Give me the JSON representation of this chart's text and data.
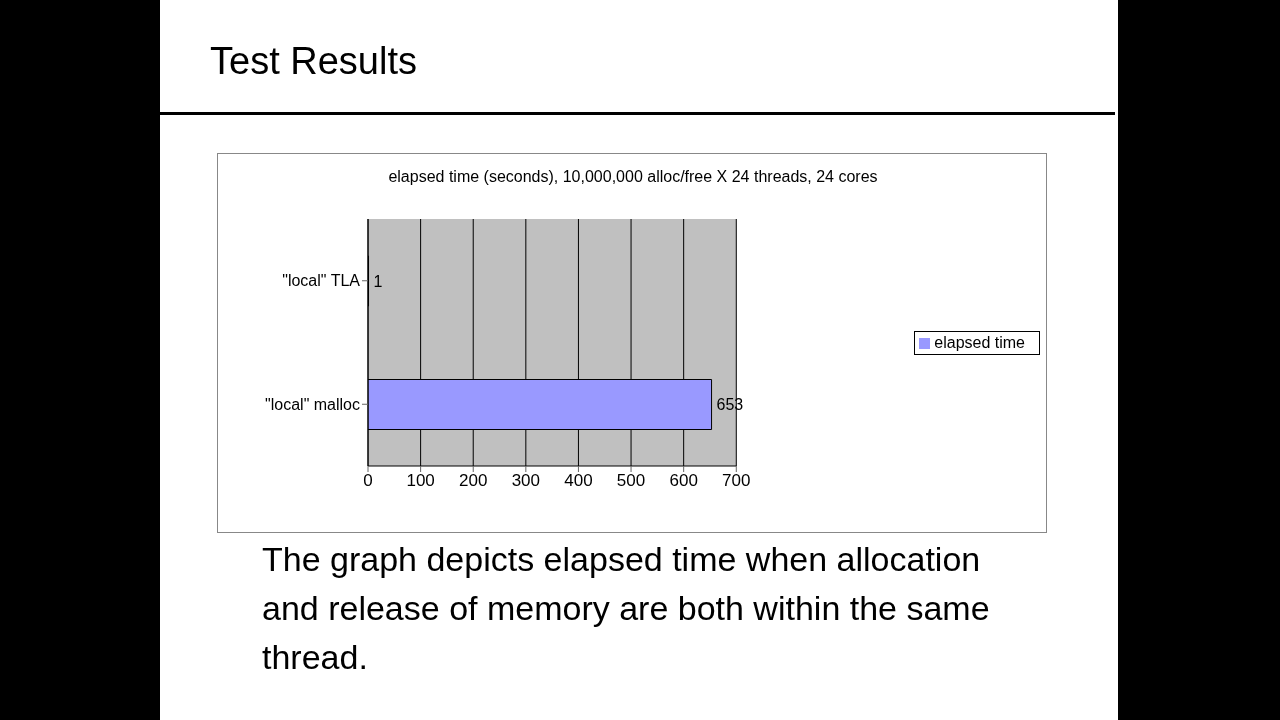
{
  "chart_data": {
    "type": "bar",
    "orientation": "horizontal",
    "title": "Test Results",
    "subtitle": "elapsed time (seconds), 10,000,000 alloc/free X 24 threads, 24 cores",
    "categories": [
      "\"local\" TLA",
      "\"local\" malloc"
    ],
    "series": [
      {
        "name": "elapsed time",
        "color": "#9999ff",
        "values": [
          1,
          653
        ]
      }
    ],
    "xlim": [
      0,
      700
    ],
    "xticks": [
      0,
      100,
      200,
      300,
      400,
      500,
      600,
      700
    ],
    "grid": "x",
    "legend": "right",
    "data_labels": true,
    "annotations": [
      "The graph depicts elapsed time when allocation and release of memory are both within the same thread."
    ]
  }
}
